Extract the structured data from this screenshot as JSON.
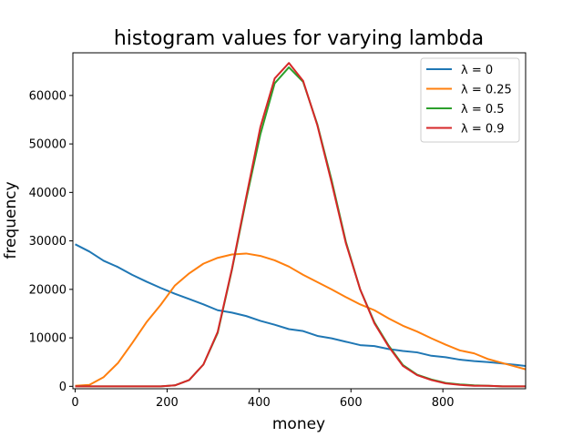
{
  "chart_data": {
    "type": "line",
    "title": "histogram values for varying lambda",
    "xlabel": "money",
    "ylabel": "frequency",
    "xlim": [
      -5,
      980
    ],
    "ylim": [
      -500,
      68800
    ],
    "x_ticks": [
      "0",
      "200",
      "400",
      "600",
      "800"
    ],
    "x_tick_values": [
      0,
      200,
      400,
      600,
      800
    ],
    "y_ticks": [
      "0",
      "10000",
      "20000",
      "30000",
      "40000",
      "50000",
      "60000"
    ],
    "y_tick_values": [
      0,
      10000,
      20000,
      30000,
      40000,
      50000,
      60000
    ],
    "legend_position": "top-right",
    "grid": false,
    "x": [
      0,
      31,
      62,
      93,
      124,
      155,
      186,
      217,
      248,
      279,
      310,
      341,
      372,
      403,
      434,
      465,
      496,
      527,
      558,
      589,
      620,
      651,
      682,
      713,
      744,
      775,
      806,
      837,
      868,
      899,
      930,
      961,
      980
    ],
    "series": [
      {
        "name": "λ = 0",
        "color": "#1f77b4",
        "values": [
          29300,
          27800,
          25900,
          24600,
          23000,
          21600,
          20300,
          19100,
          18000,
          16900,
          15700,
          15200,
          14500,
          13500,
          12700,
          11800,
          11400,
          10400,
          9900,
          9200,
          8500,
          8300,
          7700,
          7300,
          7000,
          6300,
          6000,
          5500,
          5200,
          5000,
          4700,
          4400,
          4200
        ]
      },
      {
        "name": "λ = 0.25",
        "color": "#ff7f0e",
        "values": [
          100,
          300,
          1900,
          4800,
          8900,
          13200,
          16800,
          20800,
          23300,
          25300,
          26500,
          27200,
          27400,
          26900,
          26000,
          24700,
          23000,
          21500,
          20000,
          18400,
          16900,
          15700,
          14000,
          12500,
          11300,
          9900,
          8600,
          7400,
          6800,
          5600,
          4800,
          4000,
          3500
        ]
      },
      {
        "name": "λ = 0.5",
        "color": "#2ca02c",
        "values": [
          0,
          0,
          0,
          0,
          0,
          0,
          0,
          200,
          1300,
          4500,
          11000,
          24000,
          38500,
          52000,
          62500,
          65800,
          62800,
          54000,
          42500,
          29800,
          20000,
          13200,
          8400,
          4400,
          2400,
          1400,
          700,
          400,
          200,
          100,
          0,
          0,
          0
        ]
      },
      {
        "name": "λ = 0.9",
        "color": "#d62728",
        "values": [
          0,
          0,
          0,
          0,
          0,
          0,
          0,
          200,
          1300,
          4500,
          11200,
          24200,
          39000,
          53500,
          63500,
          66700,
          63000,
          53800,
          42000,
          29500,
          20000,
          13000,
          8200,
          4200,
          2300,
          1300,
          600,
          300,
          100,
          100,
          0,
          0,
          0
        ]
      }
    ]
  }
}
